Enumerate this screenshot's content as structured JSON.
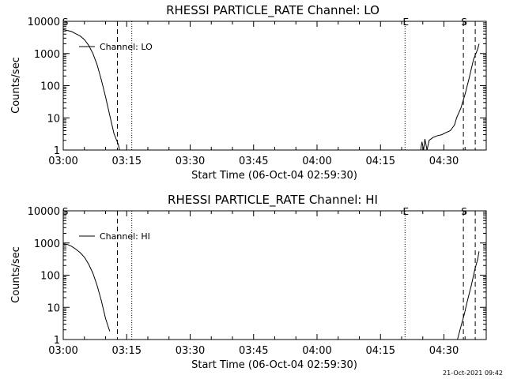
{
  "footer_timestamp": "21-Oct-2021 09:42",
  "chart_data": [
    {
      "type": "line",
      "title": "RHESSI PARTICLE_RATE Channel: LO",
      "xlabel": "Start Time (06-Oct-04 02:59:30)",
      "ylabel": "Counts/sec",
      "y_scale": "log",
      "ylim": [
        1,
        10000
      ],
      "xlim_minutes": [
        0,
        100
      ],
      "x_ticks": [
        {
          "label": "03:00",
          "minutes": 0
        },
        {
          "label": "03:15",
          "minutes": 15
        },
        {
          "label": "03:30",
          "minutes": 30
        },
        {
          "label": "03:45",
          "minutes": 45
        },
        {
          "label": "04:00",
          "minutes": 60
        },
        {
          "label": "04:15",
          "minutes": 75
        },
        {
          "label": "04:30",
          "minutes": 90
        }
      ],
      "y_ticks": [
        {
          "label": "1",
          "value": 1
        },
        {
          "label": "10",
          "value": 10
        },
        {
          "label": "100",
          "value": 100
        },
        {
          "label": "1000",
          "value": 1000
        },
        {
          "label": "10000",
          "value": 10000
        }
      ],
      "legend": {
        "label": "Channel: LO",
        "position": "top-left"
      },
      "markers": [
        {
          "label": "S",
          "minutes": 0.3,
          "style": "none"
        },
        {
          "label": "",
          "minutes": 12.8,
          "style": "dashed"
        },
        {
          "label": "",
          "minutes": 16.2,
          "style": "dotted"
        },
        {
          "label": "E",
          "minutes": 80.8,
          "style": "dotted"
        },
        {
          "label": "S",
          "minutes": 94.6,
          "style": "dashed"
        },
        {
          "label": "",
          "minutes": 97.4,
          "style": "dashed"
        }
      ],
      "series": [
        {
          "segments": [
            [
              [
                0,
                5600
              ],
              [
                1,
                5200
              ],
              [
                2,
                4800
              ],
              [
                3,
                4100
              ],
              [
                4,
                3500
              ],
              [
                5,
                2700
              ],
              [
                6,
                1800
              ],
              [
                7,
                1000
              ],
              [
                8,
                450
              ],
              [
                9,
                150
              ],
              [
                10,
                45
              ],
              [
                11,
                12
              ],
              [
                12,
                3.2
              ],
              [
                13,
                1.5
              ],
              [
                13.3,
                1
              ]
            ],
            [
              [
                84.5,
                1
              ],
              [
                84.8,
                1.8
              ],
              [
                85.2,
                1
              ],
              [
                85.5,
                2.2
              ],
              [
                86,
                1
              ],
              [
                86.5,
                2
              ],
              [
                87.5,
                2.5
              ],
              [
                88.5,
                2.8
              ],
              [
                89.5,
                3
              ],
              [
                90.5,
                3.5
              ],
              [
                91.5,
                4
              ],
              [
                92.5,
                6
              ],
              [
                93,
                10
              ],
              [
                94,
                20
              ],
              [
                95,
                55
              ],
              [
                96,
                180
              ],
              [
                97,
                650
              ],
              [
                98,
                1400
              ],
              [
                98.3,
                2000
              ]
            ]
          ]
        }
      ]
    },
    {
      "type": "line",
      "title": "RHESSI PARTICLE_RATE Channel: HI",
      "xlabel": "Start Time (06-Oct-04 02:59:30)",
      "ylabel": "Counts/sec",
      "y_scale": "log",
      "ylim": [
        1,
        10000
      ],
      "xlim_minutes": [
        0,
        100
      ],
      "x_ticks": [
        {
          "label": "03:00",
          "minutes": 0
        },
        {
          "label": "03:15",
          "minutes": 15
        },
        {
          "label": "03:30",
          "minutes": 30
        },
        {
          "label": "03:45",
          "minutes": 45
        },
        {
          "label": "04:00",
          "minutes": 60
        },
        {
          "label": "04:15",
          "minutes": 75
        },
        {
          "label": "04:30",
          "minutes": 90
        }
      ],
      "y_ticks": [
        {
          "label": "1",
          "value": 1
        },
        {
          "label": "10",
          "value": 10
        },
        {
          "label": "100",
          "value": 100
        },
        {
          "label": "1000",
          "value": 1000
        },
        {
          "label": "10000",
          "value": 10000
        }
      ],
      "legend": {
        "label": "Channel: HI",
        "position": "top-left"
      },
      "markers": [
        {
          "label": "S",
          "minutes": 0.3,
          "style": "none"
        },
        {
          "label": "",
          "minutes": 12.8,
          "style": "dashed"
        },
        {
          "label": "",
          "minutes": 16.2,
          "style": "dotted"
        },
        {
          "label": "E",
          "minutes": 80.8,
          "style": "dotted"
        },
        {
          "label": "S",
          "minutes": 94.6,
          "style": "dashed"
        },
        {
          "label": "",
          "minutes": 97.4,
          "style": "dashed"
        }
      ],
      "series": [
        {
          "segments": [
            [
              [
                0,
                950
              ],
              [
                1,
                900
              ],
              [
                2,
                780
              ],
              [
                3,
                640
              ],
              [
                4,
                500
              ],
              [
                5,
                360
              ],
              [
                6,
                220
              ],
              [
                7,
                115
              ],
              [
                8,
                48
              ],
              [
                9,
                16
              ],
              [
                10,
                4.5
              ],
              [
                11,
                1.8
              ]
            ],
            [
              [
                93.2,
                1
              ],
              [
                94,
                2.5
              ],
              [
                94.8,
                6
              ],
              [
                95.5,
                15
              ],
              [
                96.5,
                50
              ],
              [
                97.3,
                150
              ],
              [
                98,
                320
              ],
              [
                98.3,
                550
              ]
            ]
          ]
        }
      ]
    }
  ]
}
